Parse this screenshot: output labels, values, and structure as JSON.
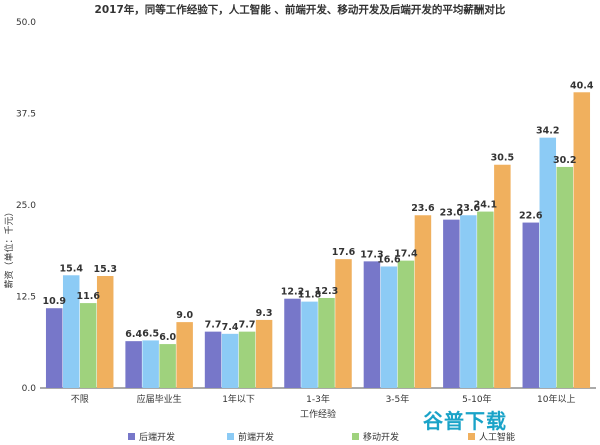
{
  "chart_data": {
    "type": "bar",
    "title": "2017年，同等工作经验下，人工智能 、前端开发、移动开发及后端开发的平均薪酬对比",
    "xlabel": "工作经验",
    "ylabel": "薪资（单位：千元）",
    "ylim": [
      0,
      50
    ],
    "yticks": [
      "0.0",
      "12.5",
      "25.0",
      "37.5",
      "50.0"
    ],
    "ytick_values": [
      0,
      12.5,
      25,
      37.5,
      50
    ],
    "categories": [
      "不限",
      "应届毕业生",
      "1年以下",
      "1-3年",
      "3-5年",
      "5-10年",
      "10年以上"
    ],
    "series": [
      {
        "name": "后端开发",
        "color": "#7777c9",
        "values": [
          10.9,
          6.4,
          7.7,
          12.2,
          17.3,
          23.0,
          22.6
        ]
      },
      {
        "name": "前端开发",
        "color": "#8ccbf5",
        "values": [
          15.4,
          6.5,
          7.4,
          11.8,
          16.6,
          23.6,
          34.2
        ]
      },
      {
        "name": "移动开发",
        "color": "#9fd27d",
        "values": [
          11.6,
          6.0,
          7.7,
          12.3,
          17.4,
          24.1,
          30.2
        ]
      },
      {
        "name": "人工智能",
        "color": "#f0b05e",
        "values": [
          15.3,
          9.0,
          9.3,
          17.6,
          23.6,
          30.5,
          40.4
        ]
      }
    ],
    "grid": false,
    "legend_position": "bottom"
  },
  "watermark": "谷普下载"
}
